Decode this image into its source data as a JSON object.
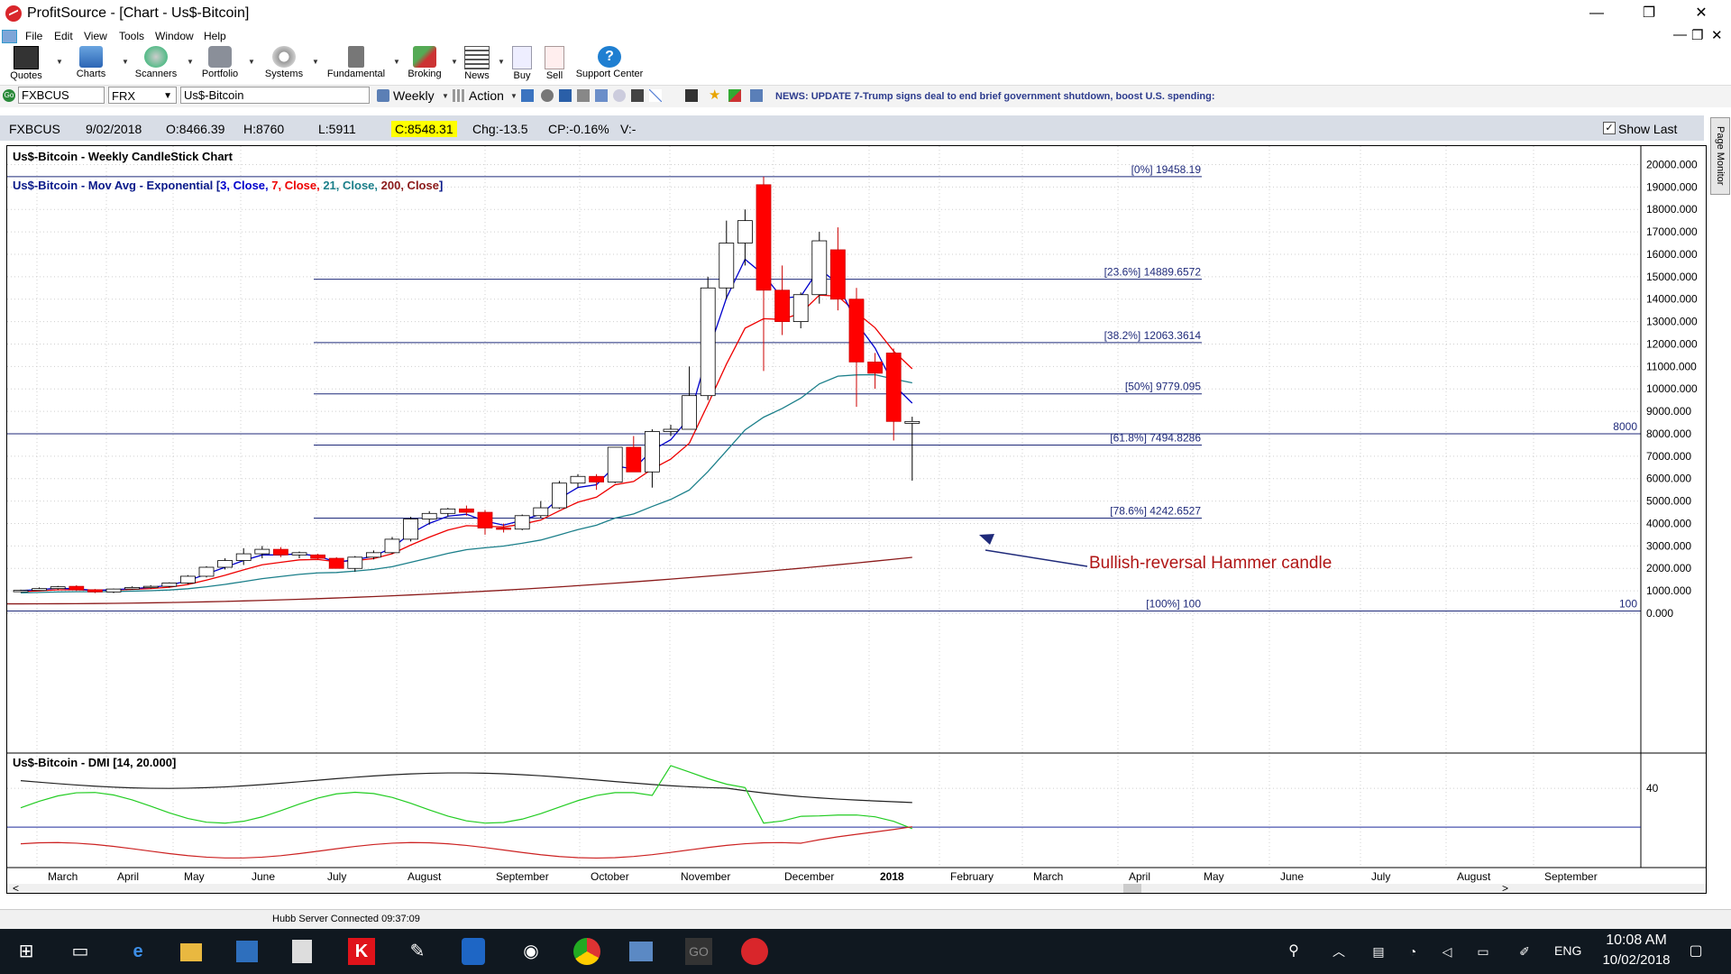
{
  "window": {
    "title": "ProfitSource - [Chart - Us$-Bitcoin]",
    "minimize": "—",
    "restore": "❐",
    "close": "✕"
  },
  "menu": [
    "File",
    "Edit",
    "View",
    "Tools",
    "Window",
    "Help"
  ],
  "toolbar": [
    {
      "label": "Quotes",
      "icon": "quotes-icon"
    },
    {
      "label": "Charts",
      "icon": "charts-icon"
    },
    {
      "label": "Scanners",
      "icon": "scanners-icon"
    },
    {
      "label": "Portfolio",
      "icon": "portfolio-icon"
    },
    {
      "label": "Systems",
      "icon": "systems-icon"
    },
    {
      "label": "Fundamental",
      "icon": "fundamental-icon"
    },
    {
      "label": "Broking",
      "icon": "broking-icon"
    },
    {
      "label": "News",
      "icon": "news-icon"
    },
    {
      "label": "Buy",
      "icon": "buy-icon"
    },
    {
      "label": "Sell",
      "icon": "sell-icon"
    },
    {
      "label": "Support Center",
      "icon": "help-icon"
    }
  ],
  "search": {
    "symbol": "FXBCUS",
    "exchange": "FRX",
    "name": "Us$-Bitcoin",
    "period": "Weekly",
    "action": "Action",
    "news": "NEWS: UPDATE 7-Trump signs deal to end brief government shutdown, boost U.S. spending:"
  },
  "quote": {
    "symbol": "FXBCUS",
    "date": "9/02/2018",
    "open": "O:8466.39",
    "high": "H:8760",
    "low": "L:5911",
    "close": "C:8548.31",
    "change": "Chg:-13.5",
    "change_pct": "CP:-0.16%",
    "volume": "V:-",
    "show_last": "Show Last"
  },
  "page_monitor": "Page Monitor",
  "status": "Hubb Server Connected 09:37:09",
  "taskbar": {
    "time": "10:08 AM",
    "date": "10/02/2018",
    "lang": "ENG"
  },
  "colors": {
    "up": "#ffffff",
    "down": "#ff0000",
    "ema3": "#0000cc",
    "ema7": "#ee0000",
    "ema21": "#1b7f8a",
    "ema200": "#8b1a1a",
    "fib": "#1f2a7a"
  },
  "chart_data": {
    "type": "candlestick",
    "title": "Us$-Bitcoin - Weekly CandleStick Chart",
    "legend_prefix": "Us$-Bitcoin - Mov Avg - Exponential [",
    "legend_items": [
      {
        "text": "3, Close, ",
        "color": "#0000cc"
      },
      {
        "text": "7, Close, ",
        "color": "#ee0000"
      },
      {
        "text": "21, Close, ",
        "color": "#1b7f8a"
      },
      {
        "text": "200, Close",
        "color": "#8b1a1a"
      }
    ],
    "legend_suffix": "]",
    "ylim": [
      0,
      20500
    ],
    "yticks": [
      20000,
      19000,
      18000,
      17000,
      16000,
      15000,
      14000,
      13000,
      12000,
      11000,
      10000,
      9000,
      8000,
      7000,
      6000,
      5000,
      4000,
      3000,
      2000,
      1000,
      0
    ],
    "ytick_labels": [
      "20000.000",
      "19000.000",
      "18000.000",
      "17000.000",
      "16000.000",
      "15000.000",
      "14000.000",
      "13000.000",
      "12000.000",
      "11000.000",
      "10000.000",
      "9000.000",
      "8000.000",
      "7000.000",
      "6000.000",
      "5000.000",
      "4000.000",
      "3000.000",
      "2000.000",
      "1000.000",
      "0.000"
    ],
    "months": [
      "March",
      "April",
      "May",
      "June",
      "July",
      "August",
      "September",
      "October",
      "November",
      "December",
      "2018",
      "February",
      "March",
      "April",
      "May",
      "June",
      "July",
      "August",
      "September"
    ],
    "candles": [
      [
        1000,
        1050,
        950,
        1020
      ],
      [
        1020,
        1150,
        1000,
        1100
      ],
      [
        1100,
        1220,
        1050,
        1180
      ],
      [
        1200,
        1250,
        1000,
        1050
      ],
      [
        1050,
        1080,
        900,
        950
      ],
      [
        950,
        1100,
        900,
        1080
      ],
      [
        1080,
        1200,
        1050,
        1150
      ],
      [
        1150,
        1250,
        1100,
        1200
      ],
      [
        1200,
        1380,
        1150,
        1350
      ],
      [
        1350,
        1700,
        1300,
        1650
      ],
      [
        1650,
        2100,
        1600,
        2050
      ],
      [
        2050,
        2450,
        1950,
        2350
      ],
      [
        2350,
        2900,
        2150,
        2650
      ],
      [
        2650,
        3000,
        2450,
        2850
      ],
      [
        2850,
        2950,
        2500,
        2600
      ],
      [
        2600,
        2750,
        2450,
        2700
      ],
      [
        2600,
        2650,
        2400,
        2450
      ],
      [
        2450,
        2500,
        2100,
        2000
      ],
      [
        2000,
        2550,
        1850,
        2500
      ],
      [
        2500,
        2800,
        2400,
        2700
      ],
      [
        2700,
        3400,
        2650,
        3300
      ],
      [
        3300,
        4300,
        3200,
        4200
      ],
      [
        4200,
        4550,
        3950,
        4450
      ],
      [
        4450,
        4700,
        4300,
        4650
      ],
      [
        4650,
        4800,
        4350,
        4500
      ],
      [
        4500,
        4600,
        3500,
        3800
      ],
      [
        3800,
        4000,
        3600,
        3750
      ],
      [
        3750,
        4400,
        3700,
        4350
      ],
      [
        4350,
        5000,
        4250,
        4700
      ],
      [
        4700,
        5900,
        4650,
        5800
      ],
      [
        5800,
        6200,
        5600,
        6100
      ],
      [
        6100,
        6200,
        5500,
        5850
      ],
      [
        5850,
        7400,
        5800,
        7400
      ],
      [
        7400,
        7900,
        6300,
        6300
      ],
      [
        6300,
        8200,
        5600,
        8100
      ],
      [
        8100,
        8400,
        7900,
        8200
      ],
      [
        8200,
        11000,
        8200,
        9700
      ],
      [
        9700,
        15000,
        9500,
        14500
      ],
      [
        14500,
        17500,
        14000,
        16500
      ],
      [
        16500,
        18000,
        15500,
        17500
      ],
      [
        19100,
        19458,
        10800,
        14400
      ],
      [
        14400,
        15500,
        12400,
        13000
      ],
      [
        13000,
        14300,
        12700,
        14200
      ],
      [
        14200,
        17000,
        13800,
        16600
      ],
      [
        16200,
        17200,
        13500,
        14000
      ],
      [
        14000,
        14500,
        9200,
        11200
      ],
      [
        11200,
        11600,
        10000,
        10700
      ],
      [
        11600,
        11800,
        7700,
        8550
      ],
      [
        8466,
        8760,
        5911,
        8548
      ]
    ],
    "fib_levels": [
      {
        "label": "[0%] 19458.19",
        "value": 19458.19
      },
      {
        "label": "[23.6%] 14889.6572",
        "value": 14889.6572
      },
      {
        "label": "[38.2%] 12063.3614",
        "value": 12063.3614
      },
      {
        "label": "[50%] 9779.095",
        "value": 9779.095
      },
      {
        "label": "[61.8%] 7494.8286",
        "value": 7494.8286
      },
      {
        "label": "[78.6%] 4242.6527",
        "value": 4242.6527
      },
      {
        "label": "[100%] 100",
        "value": 100
      }
    ],
    "hlines": [
      {
        "label": "8000",
        "value": 8000
      },
      {
        "label": "100",
        "value": 100
      }
    ],
    "annotation": "Bullish-reversal Hammer candle",
    "dmi": {
      "title": "Us$-Bitcoin - DMI [14, 20.000]",
      "ytick": "40",
      "level": 20
    }
  }
}
